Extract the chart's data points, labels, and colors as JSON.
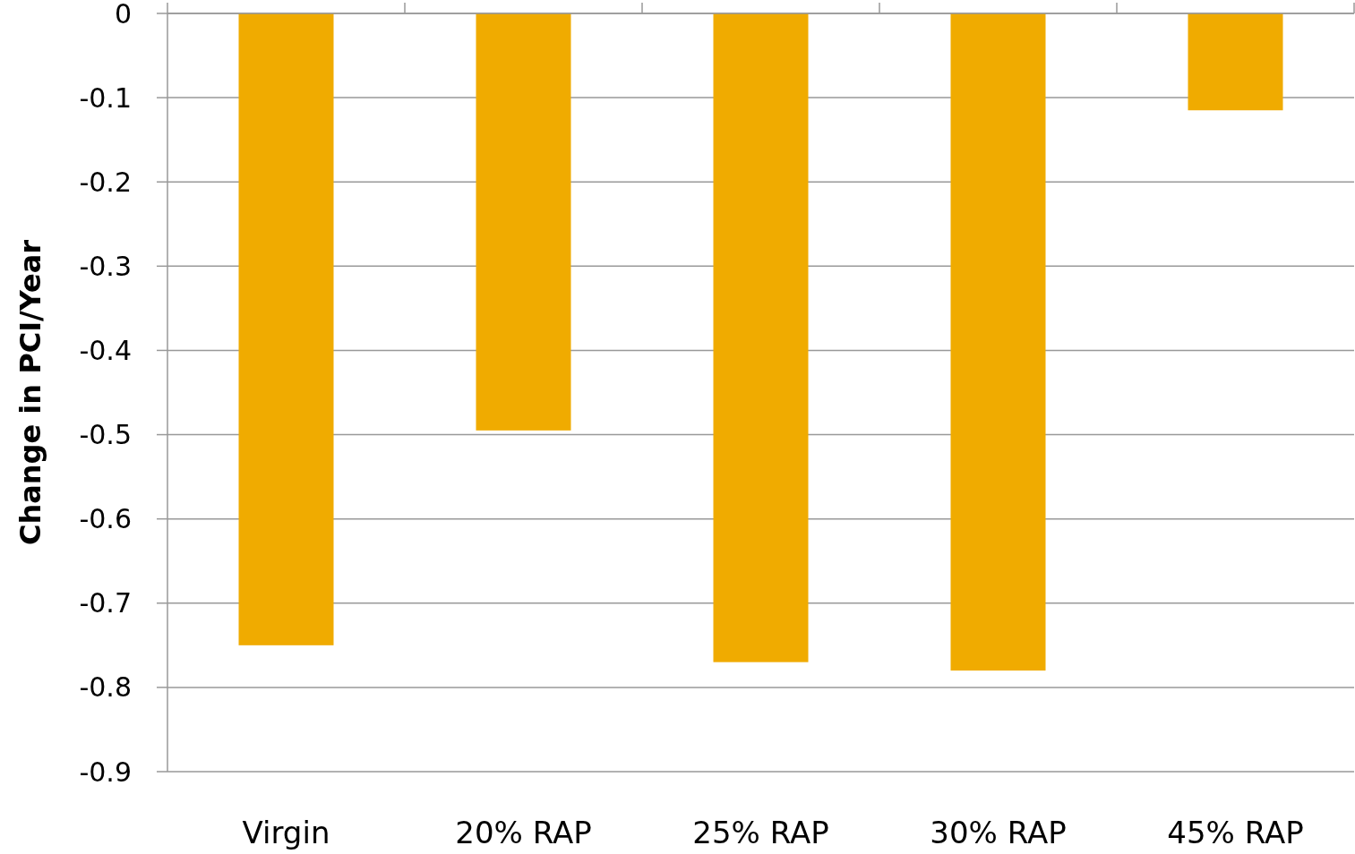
{
  "chart_data": {
    "type": "bar",
    "ylabel": "Change in PCI/Year",
    "categories": [
      "Virgin",
      "20% RAP",
      "25% RAP",
      "30% RAP",
      "45% RAP"
    ],
    "values": [
      -0.75,
      -0.495,
      -0.77,
      -0.78,
      -0.115
    ],
    "color": "#f0ab00",
    "ylim": [
      -0.9,
      0
    ],
    "yticks": [
      0,
      -0.1,
      -0.2,
      -0.3,
      -0.4,
      -0.5,
      -0.6,
      -0.7,
      -0.8,
      -0.9
    ],
    "grid": "y"
  }
}
